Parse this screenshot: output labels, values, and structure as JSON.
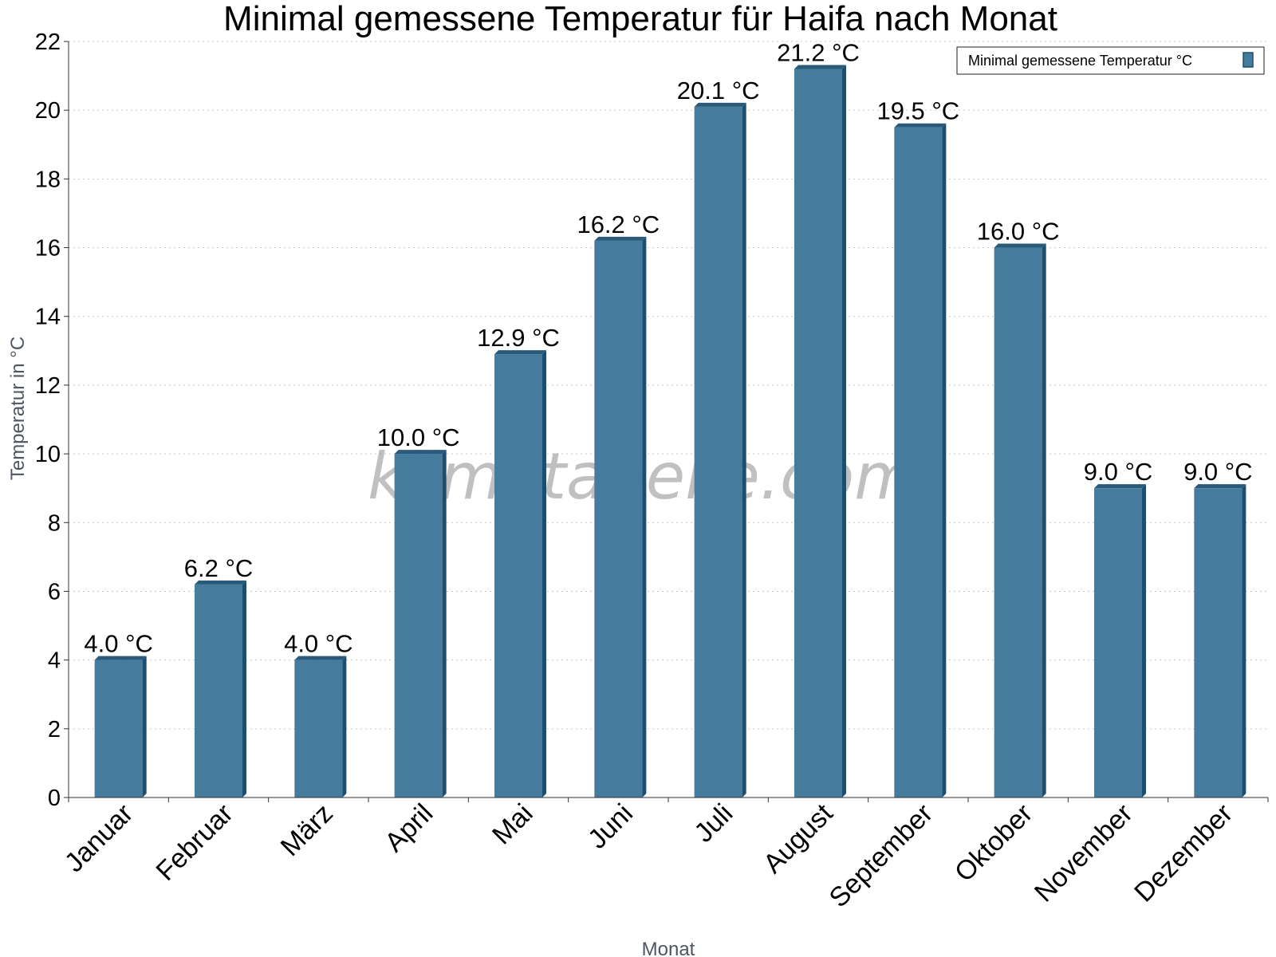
{
  "chart_data": {
    "type": "bar",
    "title": "Minimal gemessene Temperatur für Haifa nach Monat",
    "xlabel": "Monat",
    "ylabel": "Temperatur in °C",
    "categories": [
      "Januar",
      "Februar",
      "März",
      "April",
      "Mai",
      "Juni",
      "Juli",
      "August",
      "September",
      "Oktober",
      "November",
      "Dezember"
    ],
    "series": [
      {
        "name": "Minimal gemessene Temperatur °C",
        "values": [
          4.0,
          6.2,
          4.0,
          10.0,
          12.9,
          16.2,
          20.1,
          21.2,
          19.5,
          16.0,
          9.0,
          9.0
        ],
        "labels": [
          "4.0 °C",
          "6.2 °C",
          "4.0 °C",
          "10.0 °C",
          "12.9 °C",
          "16.2 °C",
          "20.1 °C",
          "21.2 °C",
          "19.5 °C",
          "16.0 °C",
          "9.0 °C",
          "9.0 °C"
        ]
      }
    ],
    "yticks": [
      "0",
      "2",
      "4",
      "6",
      "8",
      "10",
      "12",
      "14",
      "16",
      "18",
      "20",
      "22"
    ],
    "ylim": [
      0,
      22
    ],
    "grid": true,
    "legend_position": "top-right",
    "colors": {
      "bar": "#457b9d",
      "bar_side": "#1d4e6e",
      "bar_top": "#2a5a7a"
    }
  },
  "watermark": "klimatabelle.com"
}
